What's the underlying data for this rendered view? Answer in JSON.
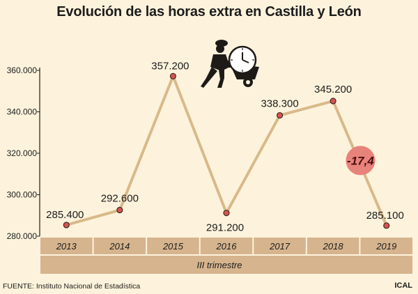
{
  "title": "Evolución de las horas extra en Castilla y León",
  "source": "FUENTE: Instituto Nacional de Estadística",
  "brand": "ICAL",
  "colors": {
    "background": "#fdf3dc",
    "line": "#d9b98a",
    "marker": "#d9534f",
    "band": "#d6b48e",
    "badge": "#e8837c",
    "badge_text": "#4a0f0f"
  },
  "illustration": {
    "icon": "worker-with-wheelbarrow-and-clock-icon"
  },
  "chart_data": {
    "type": "line",
    "title": "Evolución de las horas extra en Castilla y León",
    "xlabel": "III trimestre",
    "ylabel": "",
    "categories": [
      "2013",
      "2014",
      "2015",
      "2016",
      "2017",
      "2018",
      "2019"
    ],
    "series": [
      {
        "values": [
          285400,
          292600,
          357200,
          291200,
          338300,
          345200,
          285100
        ],
        "labels": [
          "285.400",
          "292.600",
          "357.200",
          "291.200",
          "338.300",
          "345.200",
          "285.100"
        ]
      }
    ],
    "ylim": [
      280000,
      360000
    ],
    "yticks": [
      280000,
      300000,
      320000,
      340000,
      360000
    ],
    "ytick_labels": [
      "280.000",
      "300.000",
      "320.000",
      "340.000",
      "360.000"
    ],
    "grid": false,
    "annotation": {
      "text": "-17,4",
      "between": [
        "2018",
        "2019"
      ]
    }
  }
}
